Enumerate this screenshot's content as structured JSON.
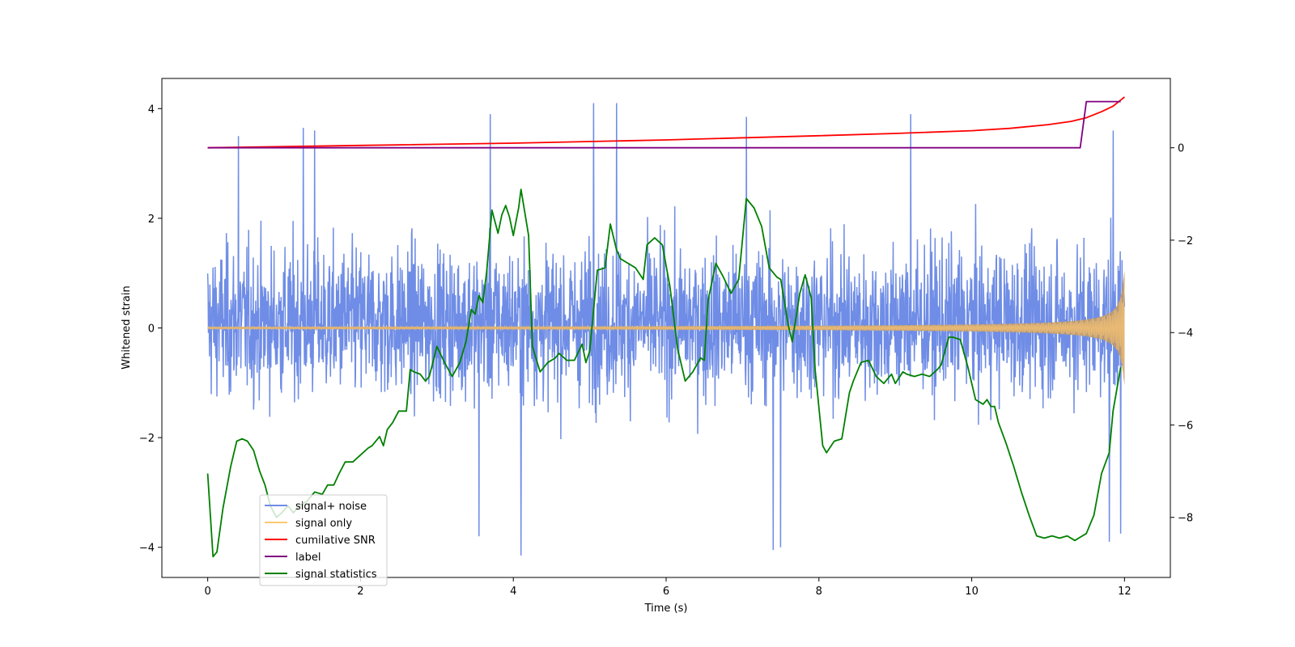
{
  "chart_data": {
    "type": "line",
    "title": "",
    "xlabel": "Time (s)",
    "ylabel": "Whitened strain",
    "y2label": "",
    "xlim": [
      -0.6,
      12.6
    ],
    "ylim": [
      -4.55,
      4.55
    ],
    "y2lim": [
      -9.3,
      1.5
    ],
    "xticks": [
      0,
      2,
      4,
      6,
      8,
      10,
      12
    ],
    "yticks": [
      -4,
      -2,
      0,
      2,
      4
    ],
    "y2ticks": [
      -8,
      -6,
      -4,
      -2,
      0
    ],
    "grid": false,
    "legend_position": "lower-left",
    "colors": {
      "noise": "#6f8de6",
      "signal": "#ffc870",
      "snr": "#ff0000",
      "label": "#800080",
      "stats": "#008000",
      "overlap": "#bb9b74"
    },
    "series": [
      {
        "name": "signal+ noise",
        "axis": "left",
        "style": "noise band",
        "x_range": [
          0,
          12
        ],
        "typical_band": [
          -2.2,
          2.4
        ],
        "spike_peaks": [
          {
            "x": 0.4,
            "y": 3.5
          },
          {
            "x": 1.25,
            "y": 3.65
          },
          {
            "x": 1.4,
            "y": 3.6
          },
          {
            "x": 3.7,
            "y": 3.9
          },
          {
            "x": 5.05,
            "y": 4.1
          },
          {
            "x": 5.35,
            "y": 4.1
          },
          {
            "x": 7.05,
            "y": 3.85
          },
          {
            "x": 9.2,
            "y": 3.9
          },
          {
            "x": 11.85,
            "y": 3.6
          },
          {
            "x": 3.55,
            "y": -3.8
          },
          {
            "x": 4.1,
            "y": -4.15
          },
          {
            "x": 7.4,
            "y": -4.05
          },
          {
            "x": 7.5,
            "y": -4.0
          },
          {
            "x": 11.8,
            "y": -3.9
          },
          {
            "x": 11.95,
            "y": -3.75
          }
        ]
      },
      {
        "name": "signal only",
        "axis": "left",
        "style": "chirp",
        "x_range": [
          0,
          12
        ],
        "amplitude_start": 0.02,
        "amplitude_end": 1.05
      },
      {
        "name": "cumilative SNR",
        "axis": "right",
        "x": [
          0,
          2,
          4,
          6,
          8,
          9,
          10,
          10.5,
          11,
          11.3,
          11.5,
          11.7,
          11.85,
          12
        ],
        "values": [
          0.0,
          0.05,
          0.1,
          0.17,
          0.26,
          0.31,
          0.37,
          0.42,
          0.5,
          0.57,
          0.65,
          0.78,
          0.9,
          1.1
        ]
      },
      {
        "name": "label",
        "axis": "right",
        "x": [
          0,
          11.42,
          11.5,
          11.95
        ],
        "values": [
          0,
          0,
          1,
          1
        ]
      },
      {
        "name": "signal statistics",
        "axis": "right",
        "x": [
          0,
          0.07,
          0.12,
          0.2,
          0.3,
          0.38,
          0.45,
          0.52,
          0.6,
          0.68,
          0.75,
          0.82,
          0.9,
          0.97,
          1.05,
          1.12,
          1.2,
          1.3,
          1.4,
          1.5,
          1.57,
          1.65,
          1.72,
          1.8,
          1.9,
          2.0,
          2.1,
          2.15,
          2.25,
          2.3,
          2.35,
          2.42,
          2.5,
          2.6,
          2.65,
          2.7,
          2.78,
          2.85,
          2.9,
          3.0,
          3.1,
          3.2,
          3.25,
          3.3,
          3.38,
          3.45,
          3.5,
          3.55,
          3.6,
          3.65,
          3.72,
          3.8,
          3.85,
          3.9,
          3.95,
          4.0,
          4.07,
          4.1,
          4.2,
          4.25,
          4.35,
          4.45,
          4.55,
          4.6,
          4.7,
          4.8,
          4.9,
          4.95,
          5.0,
          5.1,
          5.2,
          5.27,
          5.35,
          5.4,
          5.5,
          5.6,
          5.7,
          5.75,
          5.85,
          5.95,
          6.05,
          6.15,
          6.25,
          6.35,
          6.45,
          6.5,
          6.55,
          6.65,
          6.75,
          6.85,
          6.95,
          7.05,
          7.15,
          7.25,
          7.35,
          7.45,
          7.5,
          7.6,
          7.65,
          7.75,
          7.82,
          7.9,
          7.95,
          8.05,
          8.1,
          8.2,
          8.3,
          8.4,
          8.45,
          8.55,
          8.65,
          8.75,
          8.85,
          8.95,
          9.0,
          9.1,
          9.15,
          9.25,
          9.35,
          9.45,
          9.55,
          9.6,
          9.7,
          9.75,
          9.85,
          9.95,
          10.05,
          10.15,
          10.2,
          10.25,
          10.3,
          10.35,
          10.45,
          10.55,
          10.65,
          10.75,
          10.85,
          10.95,
          11.05,
          11.15,
          11.25,
          11.35,
          11.4,
          11.5,
          11.6,
          11.7,
          11.8,
          11.85,
          11.95
        ],
        "values": [
          -7.05,
          -8.85,
          -8.75,
          -7.8,
          -6.9,
          -6.35,
          -6.3,
          -6.35,
          -6.55,
          -7.0,
          -7.3,
          -7.75,
          -8.0,
          -7.9,
          -7.75,
          -7.9,
          -7.75,
          -7.65,
          -7.45,
          -7.5,
          -7.3,
          -7.3,
          -7.05,
          -6.8,
          -6.8,
          -6.65,
          -6.5,
          -6.45,
          -6.25,
          -6.45,
          -6.1,
          -5.95,
          -5.7,
          -5.7,
          -4.8,
          -4.85,
          -4.9,
          -5.05,
          -4.95,
          -4.3,
          -4.65,
          -4.95,
          -4.8,
          -4.65,
          -4.2,
          -3.5,
          -3.6,
          -3.2,
          -3.35,
          -2.7,
          -1.35,
          -1.85,
          -1.45,
          -1.25,
          -1.5,
          -1.9,
          -1.3,
          -0.9,
          -1.9,
          -4.3,
          -4.85,
          -4.65,
          -4.55,
          -4.45,
          -4.6,
          -4.6,
          -4.25,
          -4.65,
          -4.4,
          -2.65,
          -2.6,
          -1.65,
          -2.2,
          -2.4,
          -2.5,
          -2.6,
          -2.85,
          -2.1,
          -1.95,
          -2.1,
          -3.0,
          -4.35,
          -5.05,
          -4.85,
          -4.55,
          -4.6,
          -3.3,
          -2.5,
          -2.8,
          -3.15,
          -2.85,
          -1.1,
          -1.3,
          -1.7,
          -2.6,
          -2.8,
          -2.85,
          -3.85,
          -4.2,
          -3.15,
          -2.75,
          -3.25,
          -4.8,
          -6.45,
          -6.6,
          -6.35,
          -6.3,
          -5.3,
          -5.05,
          -4.65,
          -4.6,
          -4.95,
          -5.1,
          -4.9,
          -5.1,
          -4.85,
          -4.9,
          -4.95,
          -4.9,
          -4.95,
          -4.8,
          -4.7,
          -4.1,
          -4.1,
          -4.15,
          -4.75,
          -5.45,
          -5.55,
          -5.45,
          -5.6,
          -5.6,
          -5.95,
          -6.4,
          -6.9,
          -7.45,
          -7.95,
          -8.4,
          -8.45,
          -8.4,
          -8.45,
          -8.4,
          -8.5,
          -8.45,
          -8.35,
          -7.95,
          -7.05,
          -6.6,
          -5.7,
          -4.75
        ]
      }
    ]
  }
}
